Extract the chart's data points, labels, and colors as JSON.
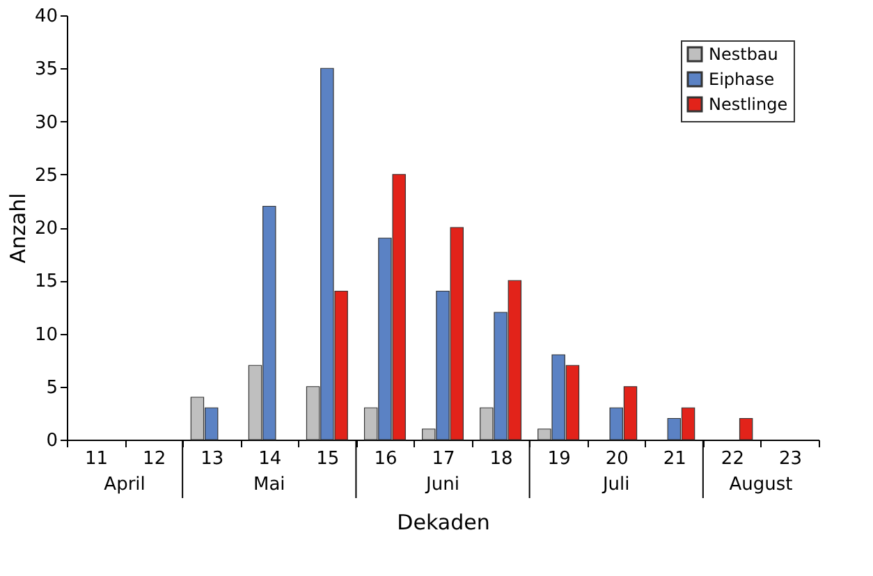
{
  "chart_data": {
    "type": "bar",
    "xlabel": "Dekaden",
    "ylabel": "Anzahl",
    "categories": [
      "11",
      "12",
      "13",
      "14",
      "15",
      "16",
      "17",
      "18",
      "19",
      "20",
      "21",
      "22",
      "23"
    ],
    "series": [
      {
        "name": "Nestbau",
        "color": "#bfbfbf",
        "values": [
          null,
          null,
          4,
          7,
          5,
          3,
          1,
          3,
          1,
          null,
          null,
          null,
          null
        ]
      },
      {
        "name": "Eiphase",
        "color": "#5b82c4",
        "values": [
          null,
          null,
          3,
          22,
          35,
          19,
          14,
          12,
          8,
          3,
          2,
          null,
          null
        ]
      },
      {
        "name": "Nestlinge",
        "color": "#e2231a",
        "values": [
          null,
          null,
          null,
          null,
          14,
          25,
          20,
          15,
          7,
          5,
          3,
          2,
          null
        ]
      }
    ],
    "annotations": [
      "April",
      "Mai",
      "Juni",
      "Juli",
      "August"
    ],
    "ylim": [
      0,
      40
    ],
    "yticks": [
      0,
      5,
      10,
      15,
      20,
      25,
      30,
      35,
      40
    ],
    "grid": false,
    "legend": "top right"
  }
}
